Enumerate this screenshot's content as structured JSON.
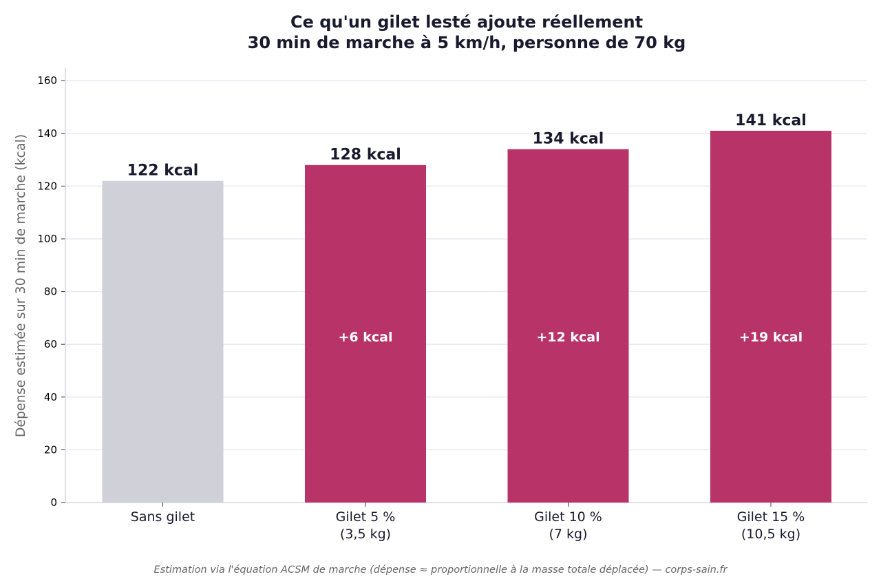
{
  "colors": {
    "baseline_bar": "#d0d0d8",
    "vest_bar": "#b83367",
    "grid": "#ece6f2",
    "axis": "#d8d3e0"
  },
  "chart_data": {
    "type": "bar",
    "title_lines": [
      "Ce qu'un gilet lesté ajoute réellement",
      "30 min de marche à 5 km/h, personne de 70 kg"
    ],
    "ylabel": "Dépense estimée sur 30 min de marche (kcal)",
    "xlabel": "",
    "ylim": [
      0,
      165
    ],
    "yticks": [
      0,
      20,
      40,
      60,
      80,
      100,
      120,
      140,
      160
    ],
    "grid": true,
    "categories": [
      [
        "Sans gilet"
      ],
      [
        "Gilet 5 %",
        "(3,5 kg)"
      ],
      [
        "Gilet 10 %",
        "(7 kg)"
      ],
      [
        "Gilet 15 %",
        "(10,5 kg)"
      ]
    ],
    "values": [
      122,
      128,
      134,
      141
    ],
    "value_labels": [
      "122 kcal",
      "128 kcal",
      "134 kcal",
      "141 kcal"
    ],
    "delta_labels": [
      "",
      "+6 kcal",
      "+12 kcal",
      "+19 kcal"
    ],
    "bar_colors": [
      "#d0d0d8",
      "#b83367",
      "#b83367",
      "#b83367"
    ]
  },
  "footnote": "Estimation via l'équation ACSM de marche (dépense ≈ proportionnelle à la masse totale déplacée) — corps-sain.fr"
}
